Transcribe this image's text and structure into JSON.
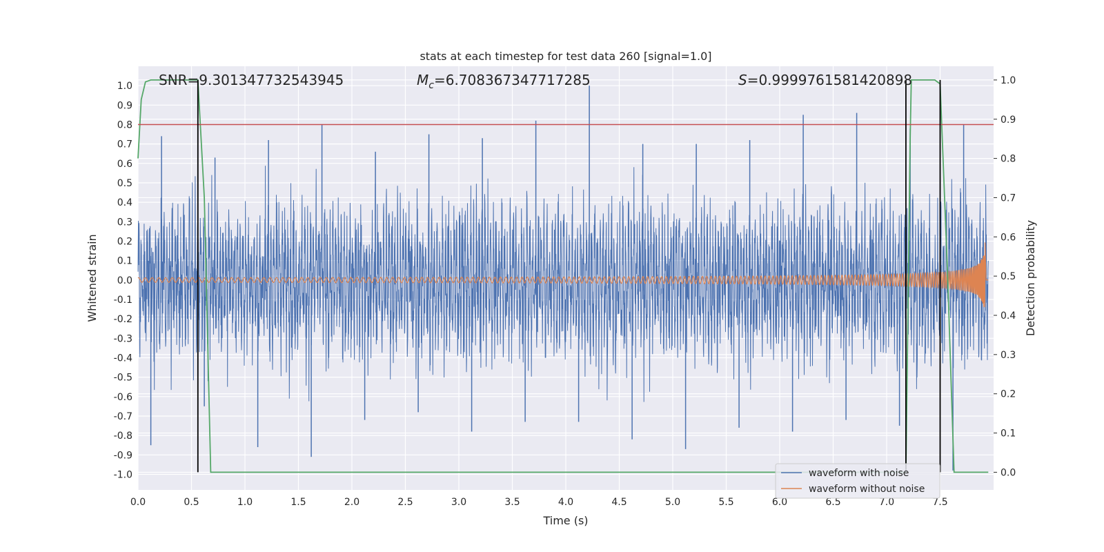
{
  "chart_data": {
    "type": "line",
    "title": "stats at each timestep for test data 260 [signal=1.0]",
    "xlabel": "Time (s)",
    "ylabel": "Whitened strain",
    "y2label": "Detection probability",
    "xlim": [
      0.0,
      8.0
    ],
    "ylim": [
      -1.08,
      1.1
    ],
    "y2lim": [
      -0.045,
      1.035
    ],
    "xticks": [
      "0.0",
      "0.5",
      "1.0",
      "1.5",
      "2.0",
      "2.5",
      "3.0",
      "3.5",
      "4.0",
      "4.5",
      "5.0",
      "5.5",
      "6.0",
      "6.5",
      "7.0",
      "7.5"
    ],
    "yticks": [
      "1.0",
      "0.9",
      "0.8",
      "0.7",
      "0.6",
      "0.5",
      "0.4",
      "0.3",
      "0.2",
      "0.1",
      "0.0",
      "-0.1",
      "-0.2",
      "-0.3",
      "-0.4",
      "-0.5",
      "-0.6",
      "-0.7",
      "-0.8",
      "-0.9",
      "-1.0"
    ],
    "y2ticks": [
      "1.0",
      "0.9",
      "0.8",
      "0.7",
      "0.6",
      "0.5",
      "0.4",
      "0.3",
      "0.2",
      "0.1",
      "0.0"
    ],
    "grid": true,
    "legend_position": "lower-right",
    "annotations": {
      "snr": "SNR=9.301347732543945",
      "mc": "=6.708367347717285",
      "mc_symbol": "M",
      "mc_sub": "c",
      "s": "=0.9999761581420898",
      "s_symbol": "S"
    },
    "threshold": 0.8,
    "vlines": [
      0.56,
      7.18,
      7.5
    ],
    "series": [
      {
        "name": "waveform with noise",
        "color": "#4c72b0",
        "description_envelope": {
          "x": [
            0.0,
            0.5,
            1.0,
            1.5,
            2.0,
            2.5,
            3.0,
            3.5,
            4.0,
            4.5,
            5.0,
            5.5,
            6.0,
            6.5,
            7.0,
            7.5,
            7.95
          ],
          "typical_amplitude": 0.38,
          "peaks_max": [
            0.74,
            0.63,
            0.72,
            0.8,
            0.66,
            0.75,
            0.73,
            0.82,
            1.0,
            0.7,
            0.7,
            0.72,
            0.85,
            0.86,
            0.78,
            0.8,
            0.62
          ],
          "peaks_min": [
            -0.85,
            -0.65,
            -0.86,
            -0.91,
            -0.72,
            -0.68,
            -0.78,
            -0.73,
            -0.73,
            -0.82,
            -0.87,
            -0.76,
            -0.78,
            -0.72,
            -0.75,
            -0.98,
            -0.74
          ]
        }
      },
      {
        "name": "waveform without noise",
        "color": "#dd8452",
        "chirp": {
          "x_start": 0.0,
          "x_end": 7.92,
          "amp_start": 0.012,
          "amp_end": 0.27,
          "t_merge": 7.93
        }
      },
      {
        "name": "detection probability",
        "color": "#55a868",
        "axis": "right",
        "x": [
          0.0,
          0.03,
          0.07,
          0.12,
          0.4,
          0.55,
          0.56,
          0.62,
          0.68,
          7.17,
          7.18,
          7.22,
          7.23,
          7.26,
          7.45,
          7.5,
          7.57,
          7.63,
          7.95
        ],
        "y": [
          0.8,
          0.95,
          0.995,
          1.0,
          1.0,
          1.0,
          1.0,
          0.7,
          0.0,
          0.0,
          0.0,
          0.85,
          1.0,
          1.0,
          1.0,
          0.99,
          0.5,
          0.0,
          0.0
        ]
      }
    ]
  }
}
